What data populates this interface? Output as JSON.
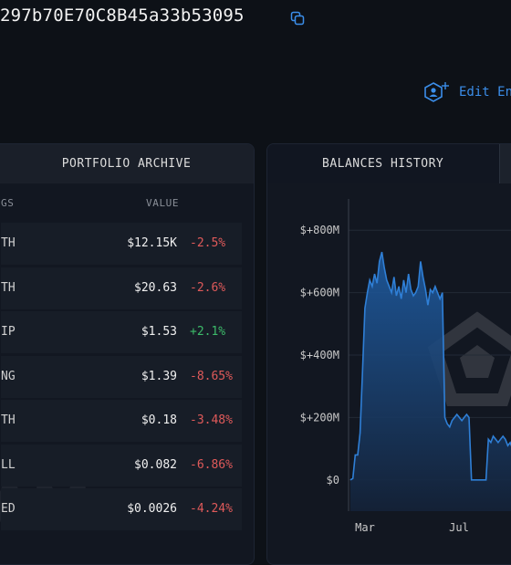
{
  "header": {
    "address": "297b70E70C8B45a33b53095",
    "edit_label": "Edit En"
  },
  "portfolio": {
    "title": "PORTFOLIO ARCHIVE",
    "col_holdings": "GS",
    "col_value": "VALUE",
    "watermark": "AM",
    "rows": [
      {
        "asset": "TH",
        "value": "$12.15K",
        "change": "-2.5%",
        "dir": "neg"
      },
      {
        "asset": "TH",
        "value": "$20.63",
        "change": "-2.6%",
        "dir": "neg"
      },
      {
        "asset": "IP",
        "value": "$1.53",
        "change": "+2.1%",
        "dir": "pos"
      },
      {
        "asset": "NG",
        "value": "$1.39",
        "change": "-8.65%",
        "dir": "neg"
      },
      {
        "asset": "TH",
        "value": "$0.18",
        "change": "-3.48%",
        "dir": "neg"
      },
      {
        "asset": "LL",
        "value": "$0.082",
        "change": "-6.86%",
        "dir": "neg"
      },
      {
        "asset": "ED",
        "value": "$0.0026",
        "change": "-4.24%",
        "dir": "neg"
      }
    ]
  },
  "balances": {
    "title": "BALANCES HISTORY",
    "accent": "#2f7fd6"
  },
  "chart_data": {
    "type": "area",
    "y_ticks": [
      "$+800M",
      "$+600M",
      "$+400M",
      "$+200M",
      "$0"
    ],
    "y_values": [
      800,
      600,
      400,
      200,
      0
    ],
    "x_ticks": [
      "Mar",
      "Jul"
    ],
    "ylim": [
      -100,
      900
    ],
    "grid": true,
    "series": [
      {
        "values": [
          0,
          5,
          80,
          80,
          150,
          350,
          550,
          600,
          640,
          620,
          660,
          630,
          700,
          730,
          680,
          640,
          620,
          600,
          650,
          590,
          620,
          580,
          640,
          600,
          660,
          610,
          590,
          600,
          620,
          700,
          650,
          610,
          560,
          610,
          600,
          620,
          600,
          580,
          600,
          200,
          180,
          170,
          190,
          200,
          210,
          200,
          190,
          200,
          210,
          200,
          0,
          0,
          0,
          0,
          0,
          0,
          0,
          130,
          120,
          140,
          130,
          120,
          130,
          140,
          130,
          110,
          120,
          100,
          110,
          100,
          105,
          100,
          95,
          100,
          90,
          95
        ]
      }
    ]
  }
}
